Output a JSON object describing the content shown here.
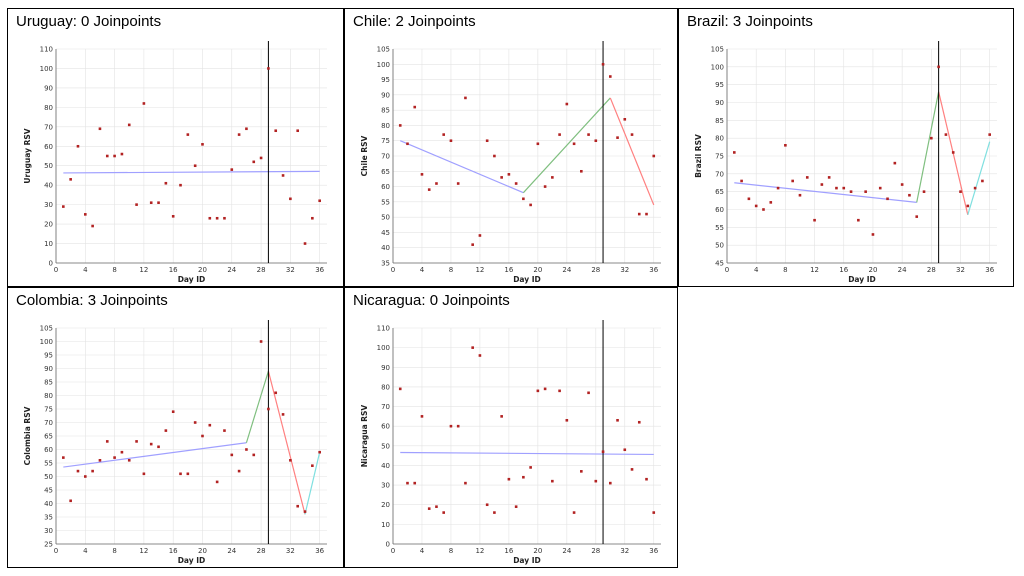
{
  "layout": {
    "rows": 2,
    "cols": 3
  },
  "colors": {
    "segments": [
      "#a0a0ff",
      "#7fbf7f",
      "#ff8080",
      "#80e0e0"
    ],
    "points": "#b22222",
    "cutoff": "#000000",
    "grid": "#e3e3e3"
  },
  "chart_data": [
    {
      "type": "scatter",
      "title": "Uruguay: 0 Joinpoints",
      "xlabel": "Day ID",
      "ylabel": "Uruguay RSV",
      "xlim": [
        0,
        37
      ],
      "ylim": [
        0,
        110
      ],
      "xticks": [
        0,
        4,
        8,
        12,
        16,
        20,
        24,
        28,
        32,
        36
      ],
      "yticks": [
        0,
        10,
        20,
        30,
        40,
        50,
        60,
        70,
        80,
        90,
        100,
        110
      ],
      "cutoff_x": 29,
      "points": {
        "x": [
          1,
          2,
          3,
          4,
          5,
          6,
          7,
          8,
          9,
          10,
          11,
          12,
          13,
          14,
          15,
          16,
          17,
          18,
          19,
          20,
          21,
          22,
          23,
          24,
          25,
          26,
          27,
          28,
          29,
          30,
          31,
          32,
          33,
          34,
          35,
          36
        ],
        "y": [
          29,
          43,
          60,
          25,
          19,
          69,
          55,
          55,
          56,
          71,
          30,
          82,
          31,
          31,
          41,
          24,
          40,
          66,
          50,
          61,
          23,
          23,
          23,
          48,
          66,
          69,
          52,
          54,
          100,
          68,
          45,
          33,
          68,
          10,
          23,
          32
        ]
      },
      "segments": [
        {
          "x": [
            1,
            36
          ],
          "y": [
            46.3,
            47.1
          ]
        }
      ]
    },
    {
      "type": "scatter",
      "title": "Chile: 2 Joinpoints",
      "xlabel": "Day ID",
      "ylabel": "Chile RSV",
      "xlim": [
        0,
        37
      ],
      "ylim": [
        35,
        105
      ],
      "xticks": [
        0,
        4,
        8,
        12,
        16,
        20,
        24,
        28,
        32,
        36
      ],
      "yticks": [
        35,
        40,
        45,
        50,
        55,
        60,
        65,
        70,
        75,
        80,
        85,
        90,
        95,
        100,
        105
      ],
      "cutoff_x": 29,
      "points": {
        "x": [
          1,
          2,
          3,
          4,
          5,
          6,
          7,
          8,
          9,
          10,
          11,
          12,
          13,
          14,
          15,
          16,
          17,
          18,
          19,
          20,
          21,
          22,
          23,
          24,
          25,
          26,
          27,
          28,
          29,
          30,
          31,
          32,
          33,
          34,
          35,
          36
        ],
        "y": [
          80,
          74,
          86,
          64,
          59,
          61,
          77,
          75,
          61,
          89,
          41,
          44,
          75,
          70,
          63,
          64,
          61,
          56,
          54,
          74,
          60,
          63,
          77,
          87,
          74,
          65,
          77,
          75,
          100,
          96,
          76,
          82,
          77,
          51,
          51,
          70
        ]
      },
      "segments": [
        {
          "x": [
            1,
            18
          ],
          "y": [
            75,
            58
          ]
        },
        {
          "x": [
            18,
            30
          ],
          "y": [
            58,
            89
          ]
        },
        {
          "x": [
            30,
            36
          ],
          "y": [
            89,
            54
          ]
        }
      ]
    },
    {
      "type": "scatter",
      "title": "Brazil: 3 Joinpoints",
      "xlabel": "Day ID",
      "ylabel": "Brazil RSV",
      "xlim": [
        0,
        37
      ],
      "ylim": [
        45,
        105
      ],
      "xticks": [
        0,
        4,
        8,
        12,
        16,
        20,
        24,
        28,
        32,
        36
      ],
      "yticks": [
        45,
        50,
        55,
        60,
        65,
        70,
        75,
        80,
        85,
        90,
        95,
        100,
        105
      ],
      "cutoff_x": 29,
      "points": {
        "x": [
          1,
          2,
          3,
          4,
          5,
          6,
          7,
          8,
          9,
          10,
          11,
          12,
          13,
          14,
          15,
          16,
          17,
          18,
          19,
          20,
          21,
          22,
          23,
          24,
          25,
          26,
          27,
          28,
          29,
          30,
          31,
          32,
          33,
          34,
          35,
          36
        ],
        "y": [
          76,
          68,
          63,
          61,
          60,
          62,
          66,
          78,
          68,
          64,
          69,
          57,
          67,
          69,
          66,
          66,
          65,
          57,
          65,
          53,
          66,
          63,
          73,
          67,
          64,
          58,
          65,
          80,
          100,
          81,
          76,
          65,
          61,
          66,
          68,
          81
        ]
      },
      "segments": [
        {
          "x": [
            1,
            26
          ],
          "y": [
            67.5,
            62
          ]
        },
        {
          "x": [
            26,
            29
          ],
          "y": [
            62,
            93
          ]
        },
        {
          "x": [
            29,
            33
          ],
          "y": [
            93,
            58.5
          ]
        },
        {
          "x": [
            33,
            36
          ],
          "y": [
            58.5,
            79
          ]
        }
      ]
    },
    {
      "type": "scatter",
      "title": "Colombia: 3 Joinpoints",
      "xlabel": "Day ID",
      "ylabel": "Colombia RSV",
      "xlim": [
        0,
        37
      ],
      "ylim": [
        25,
        105
      ],
      "xticks": [
        0,
        4,
        8,
        12,
        16,
        20,
        24,
        28,
        32,
        36
      ],
      "yticks": [
        25,
        30,
        35,
        40,
        45,
        50,
        55,
        60,
        65,
        70,
        75,
        80,
        85,
        90,
        95,
        100,
        105
      ],
      "cutoff_x": 29,
      "points": {
        "x": [
          1,
          2,
          3,
          4,
          5,
          6,
          7,
          8,
          9,
          10,
          11,
          12,
          13,
          14,
          15,
          16,
          17,
          18,
          19,
          20,
          21,
          22,
          23,
          24,
          25,
          26,
          27,
          28,
          29,
          30,
          31,
          32,
          33,
          34,
          35,
          36
        ],
        "y": [
          57,
          41,
          52,
          50,
          52,
          56,
          63,
          57,
          59,
          56,
          63,
          51,
          62,
          61,
          67,
          74,
          51,
          51,
          70,
          65,
          69,
          48,
          67,
          58,
          52,
          60,
          58,
          100,
          75,
          81,
          73,
          56,
          39,
          37,
          54,
          59
        ]
      },
      "segments": [
        {
          "x": [
            1,
            26
          ],
          "y": [
            53.5,
            62.5
          ]
        },
        {
          "x": [
            26,
            29
          ],
          "y": [
            62.5,
            89
          ]
        },
        {
          "x": [
            29,
            34
          ],
          "y": [
            89,
            36
          ]
        },
        {
          "x": [
            34,
            36
          ],
          "y": [
            36,
            59
          ]
        }
      ]
    },
    {
      "type": "scatter",
      "title": "Nicaragua: 0 Joinpoints",
      "xlabel": "Day ID",
      "ylabel": "Nicaragua RSV",
      "xlim": [
        0,
        37
      ],
      "ylim": [
        0,
        110
      ],
      "xticks": [
        0,
        4,
        8,
        12,
        16,
        20,
        24,
        28,
        32,
        36
      ],
      "yticks": [
        0,
        10,
        20,
        30,
        40,
        50,
        60,
        70,
        80,
        90,
        100,
        110
      ],
      "cutoff_x": 29,
      "points": {
        "x": [
          1,
          2,
          3,
          4,
          5,
          6,
          7,
          8,
          9,
          10,
          11,
          12,
          13,
          14,
          15,
          16,
          17,
          18,
          19,
          20,
          21,
          22,
          23,
          24,
          25,
          26,
          27,
          28,
          29,
          30,
          31,
          32,
          33,
          34,
          35,
          36
        ],
        "y": [
          79,
          31,
          31,
          65,
          18,
          19,
          16,
          60,
          60,
          31,
          100,
          96,
          20,
          16,
          65,
          33,
          19,
          34,
          39,
          78,
          79,
          32,
          78,
          63,
          16,
          37,
          77,
          32,
          47,
          31,
          63,
          48,
          38,
          62,
          33,
          16
        ]
      },
      "segments": [
        {
          "x": [
            1,
            36
          ],
          "y": [
            46.6,
            45.6
          ]
        }
      ]
    }
  ]
}
